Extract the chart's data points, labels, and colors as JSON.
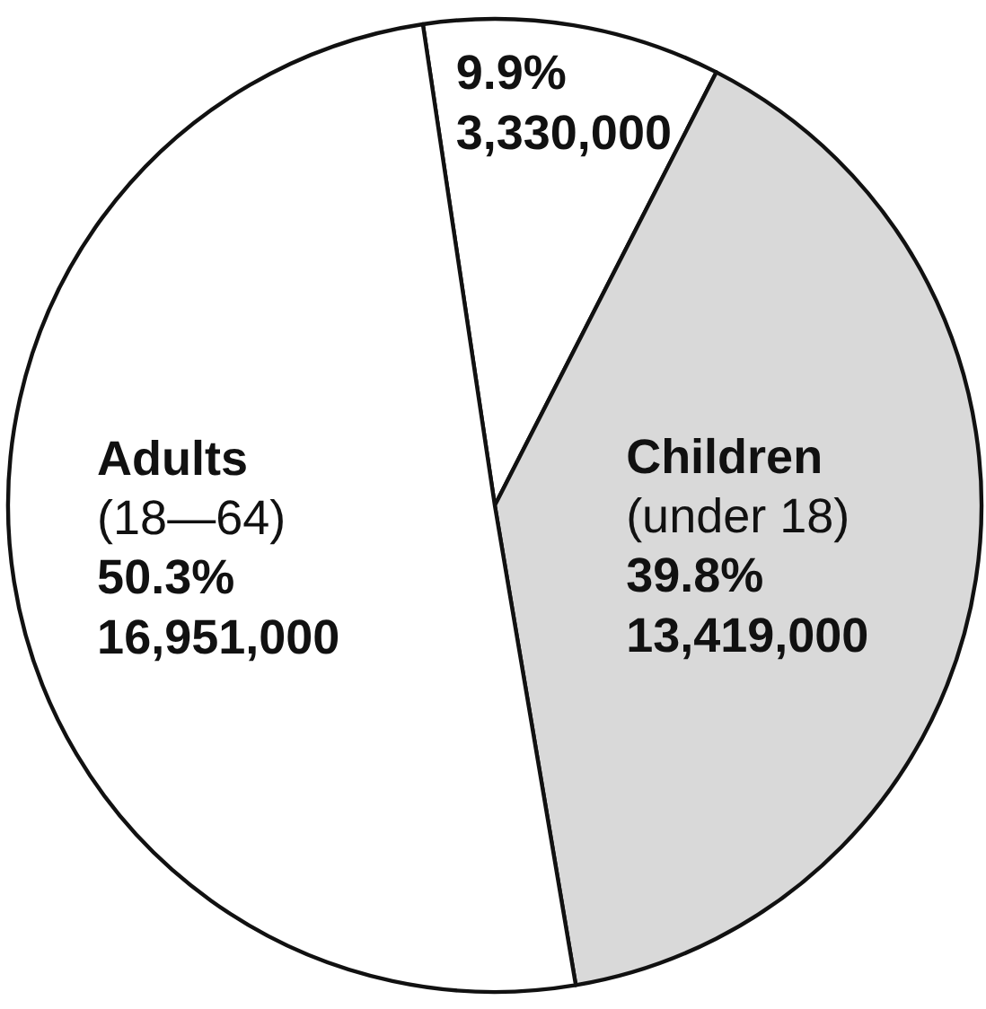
{
  "chart_data": {
    "type": "pie",
    "categories": [
      null,
      "Children\n(under 18)",
      "Adults\n(18—64)"
    ],
    "values": [
      3330000,
      13419000,
      16951000
    ],
    "colors": [
      "#ffffff",
      "#d9d9d9",
      "#ffffff"
    ],
    "value_labels": [
      "9.9%\n3,330,000",
      "39.8%\n13,419,000",
      "50.3%\n16,951,000"
    ]
  }
}
